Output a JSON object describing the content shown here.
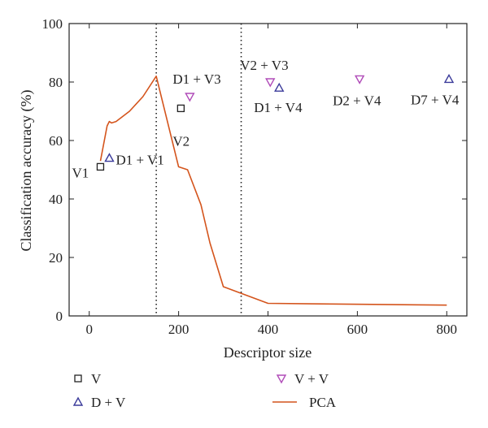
{
  "chart_data": {
    "type": "scatter",
    "xlabel": "Descriptor size",
    "ylabel": "Classification accuracy (%)",
    "xlim": [
      -45,
      845
    ],
    "ylim": [
      0,
      100
    ],
    "x_ticks": [
      0,
      200,
      400,
      600,
      800
    ],
    "y_ticks": [
      0,
      20,
      40,
      60,
      80,
      100
    ],
    "grid": false,
    "legend_placement": "bottom",
    "vertical_dotted_lines": [
      150,
      340
    ],
    "series": [
      {
        "name": "V",
        "marker": "square",
        "color": "#222222",
        "points": [
          {
            "x": 25,
            "y": 51,
            "label": "V1"
          },
          {
            "x": 205,
            "y": 71,
            "label": "V2"
          }
        ]
      },
      {
        "name": "D + V",
        "marker": "triangle-up",
        "color": "#3a3a9a",
        "points": [
          {
            "x": 45,
            "y": 54,
            "label": "D1 + V1"
          },
          {
            "x": 425,
            "y": 78,
            "label": "D1 + V4"
          },
          {
            "x": 805,
            "y": 81,
            "label": "D7 + V4"
          }
        ]
      },
      {
        "name": "V + V",
        "marker": "triangle-down",
        "color": "#b04bb8",
        "points": [
          {
            "x": 225,
            "y": 75,
            "label": "D1 + V3"
          },
          {
            "x": 405,
            "y": 80,
            "label": "V2 + V3"
          },
          {
            "x": 605,
            "y": 81,
            "label": "D2 + V4"
          }
        ]
      },
      {
        "name": "PCA",
        "marker": "line",
        "color": "#d4541c",
        "points": [
          {
            "x": 25,
            "y": 53
          },
          {
            "x": 40,
            "y": 65
          },
          {
            "x": 45,
            "y": 66.5
          },
          {
            "x": 50,
            "y": 66
          },
          {
            "x": 60,
            "y": 66.5
          },
          {
            "x": 90,
            "y": 70
          },
          {
            "x": 120,
            "y": 75
          },
          {
            "x": 150,
            "y": 82
          },
          {
            "x": 200,
            "y": 51
          },
          {
            "x": 220,
            "y": 50
          },
          {
            "x": 250,
            "y": 38
          },
          {
            "x": 270,
            "y": 25
          },
          {
            "x": 300,
            "y": 10
          },
          {
            "x": 400,
            "y": 4.3
          },
          {
            "x": 800,
            "y": 3.7
          }
        ]
      }
    ]
  }
}
